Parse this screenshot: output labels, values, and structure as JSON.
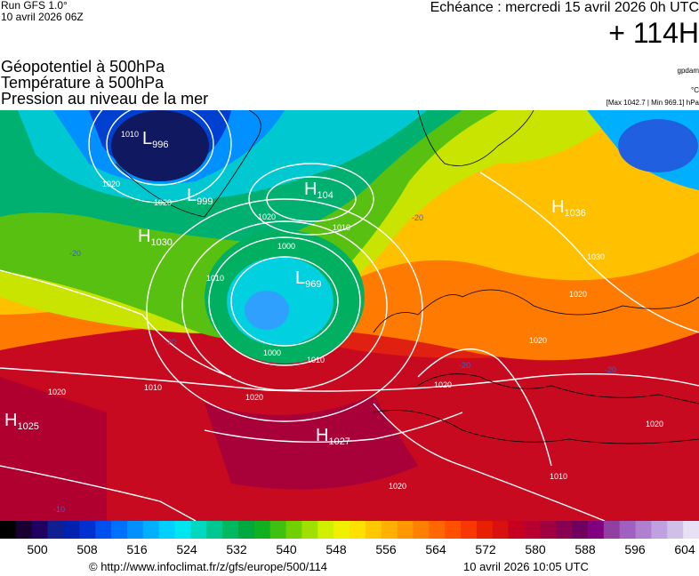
{
  "header": {
    "run": "Run GFS 1.0°",
    "run_date": "10 avril 2026 06Z",
    "echeance": "Echéance : mercredi 15 avril 2026 0h UTC",
    "lead": "+ 114H",
    "unit_gpdam": "gpdam",
    "unit_c": "°C",
    "minmax": "[Max 1042.7 | Min 969.1] hPa",
    "line1": "Géopotentiel à 500hPa",
    "line2": "Température à 500hPa",
    "line3": "Pression au niveau de la mer"
  },
  "map": {
    "centers": [
      {
        "type": "L",
        "value": "996"
      },
      {
        "type": "L",
        "value": "999"
      },
      {
        "type": "H",
        "value": "1030"
      },
      {
        "type": "H",
        "value": "104"
      },
      {
        "type": "L",
        "value": "969"
      },
      {
        "type": "H",
        "value": "1036"
      },
      {
        "type": "H",
        "value": "1025"
      },
      {
        "type": "H",
        "value": "1027"
      }
    ],
    "isobar_labels": [
      "1010",
      "1020",
      "1020",
      "1000",
      "1010",
      "1010",
      "1020",
      "1000",
      "1010",
      "1010",
      "1020",
      "1020",
      "1030",
      "1020",
      "1020",
      "1020",
      "1010",
      "1020",
      "1020"
    ],
    "temp_labels": [
      "-20",
      "-20",
      "-20",
      "-20",
      "-10",
      "-20"
    ]
  },
  "colorbar": {
    "colors": [
      "#000000",
      "#1a0030",
      "#200060",
      "#102090",
      "#0020b0",
      "#0030d0",
      "#0050f0",
      "#0070ff",
      "#0090ff",
      "#00b0ff",
      "#00d0ff",
      "#00e6f0",
      "#00d8c0",
      "#00c890",
      "#00b860",
      "#00a840",
      "#10b020",
      "#40c010",
      "#70d000",
      "#a0e000",
      "#d0f000",
      "#f0f000",
      "#ffe000",
      "#ffc800",
      "#ffb000",
      "#ff9800",
      "#ff8000",
      "#ff6800",
      "#ff5000",
      "#f83800",
      "#e82000",
      "#d81010",
      "#c80020",
      "#b80030",
      "#a00040",
      "#880050",
      "#700060",
      "#800080",
      "#9040a0",
      "#a060c0",
      "#b080d0",
      "#c0a0e0",
      "#d0c0e8",
      "#e8e0f4"
    ],
    "ticks": [
      "500",
      "508",
      "516",
      "524",
      "532",
      "540",
      "548",
      "556",
      "564",
      "572",
      "580",
      "588",
      "596",
      "604"
    ]
  },
  "footer": {
    "url": "© http://www.infoclimat.fr/z/gfs/europe/500/114",
    "timestamp": "10 avril 2026 10:05 UTC"
  }
}
